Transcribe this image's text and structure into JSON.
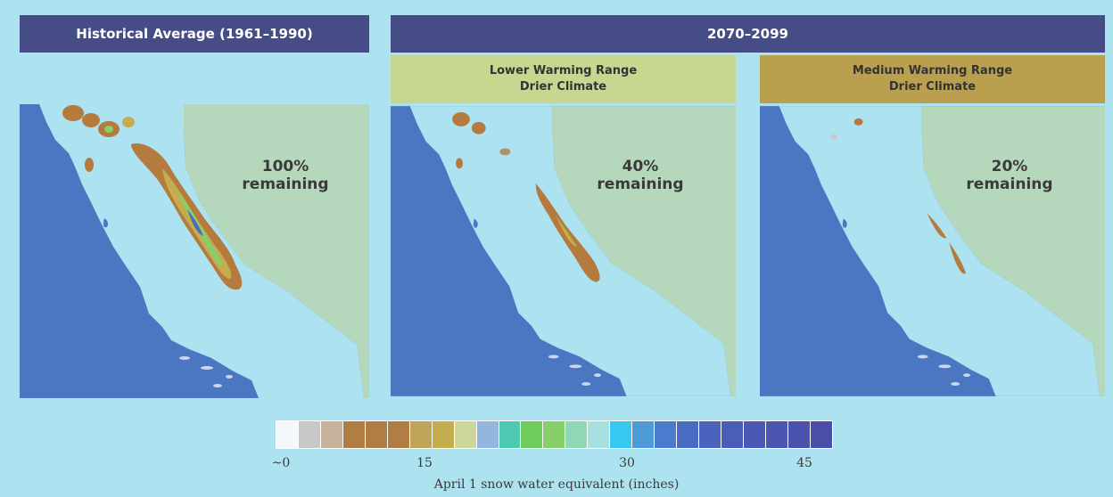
{
  "header_left": "Historical Average (1961–1990)",
  "header_right": "2070–2099",
  "panels": [
    {
      "remaining_pct": "100%",
      "remaining_word": "remaining"
    },
    {
      "sub_line1": "Lower Warming Range",
      "sub_line2": "Drier Climate",
      "remaining_pct": "40%",
      "remaining_word": "remaining"
    },
    {
      "sub_line1": "Medium Warming Range",
      "sub_line2": "Drier Climate",
      "remaining_pct": "20%",
      "remaining_word": "remaining"
    }
  ],
  "legend": {
    "title": "April 1 snow water equivalent (inches)",
    "ticks": [
      "~0",
      "15",
      "30",
      "45"
    ],
    "colors": [
      "#f4f8fa",
      "#c8c8c8",
      "#c6b29a",
      "#b07d45",
      "#b07d45",
      "#b07d45",
      "#c0a457",
      "#c3ad4e",
      "#cdd79b",
      "#93b6df",
      "#4cc9b0",
      "#6ecb5c",
      "#86cf6a",
      "#8ed8b5",
      "#a7e1df",
      "#38c8f2",
      "#4f9bd8",
      "#4b7bcc",
      "#4a6bc2",
      "#4a64bd",
      "#4a5eb8",
      "#4a5ab4",
      "#4a56b0",
      "#4a52ac",
      "#4a4ea8"
    ]
  },
  "colors": {
    "background": "#ade3f0",
    "header_bg": "#454c86",
    "sub_lower_bg": "#c6d88f",
    "sub_medium_bg": "#b99f4e",
    "ocean": "#4a76c2",
    "land": "#ade3f0",
    "neighbor_state": "#b5d8bc",
    "snow_brown": "#b47a3e"
  }
}
